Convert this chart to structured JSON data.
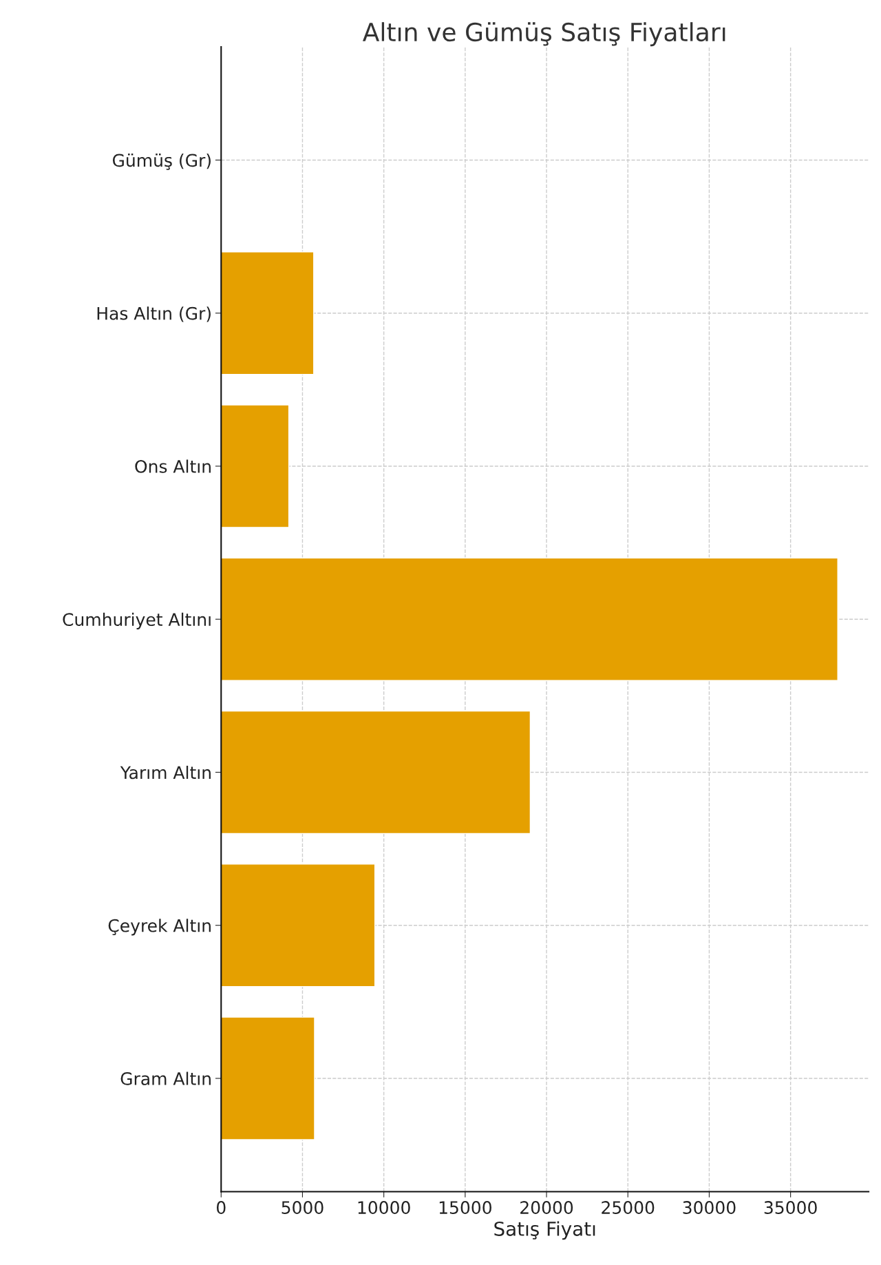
{
  "chart_data": {
    "type": "bar",
    "orientation": "horizontal",
    "title": "Altın ve Gümüş Satış Fiyatları",
    "xlabel": "Satış Fiyatı",
    "categories": [
      "Gümüş (Gr)",
      "Has Altın (Gr)",
      "Ons Altın",
      "Cumhuriyet Altını",
      "Yarım Altın",
      "Çeyrek Altın",
      "Gram Altın"
    ],
    "values": [
      null,
      5690,
      4160,
      37900,
      19000,
      9450,
      5740
    ],
    "color": "#e5a000",
    "xlim": [
      0,
      39800
    ],
    "xticks": [
      0,
      5000,
      10000,
      15000,
      20000,
      25000,
      30000,
      35000
    ],
    "grid": true
  }
}
